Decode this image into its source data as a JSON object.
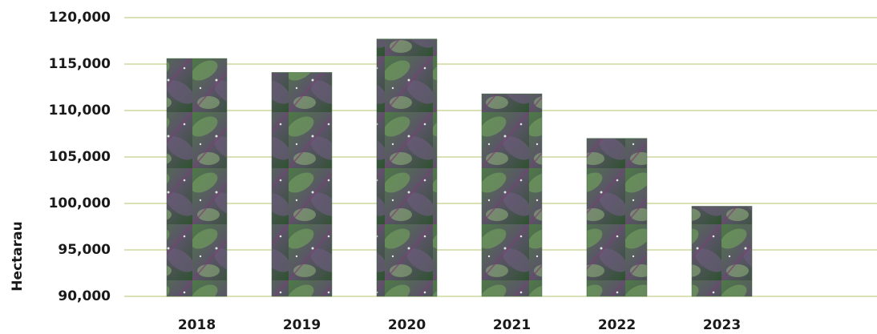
{
  "chart_data": {
    "type": "bar",
    "y_label": "Hectarau",
    "categories": [
      "2018",
      "2019",
      "2020",
      "2021",
      "2022",
      "2023"
    ],
    "values": [
      115600,
      114100,
      117700,
      111800,
      107000,
      99700
    ],
    "color": "#3f6b3c",
    "grid_color": "#c5cf8a",
    "ylim": [
      90000,
      120000
    ],
    "yticks": [
      {
        "value": 90000,
        "label": "90,000"
      },
      {
        "value": 95000,
        "label": "95,000"
      },
      {
        "value": 100000,
        "label": "100,000"
      },
      {
        "value": 105000,
        "label": "105,000"
      },
      {
        "value": 110000,
        "label": "110,000"
      },
      {
        "value": 115000,
        "label": "115,000"
      },
      {
        "value": 120000,
        "label": "120,000"
      }
    ],
    "grid": true
  }
}
